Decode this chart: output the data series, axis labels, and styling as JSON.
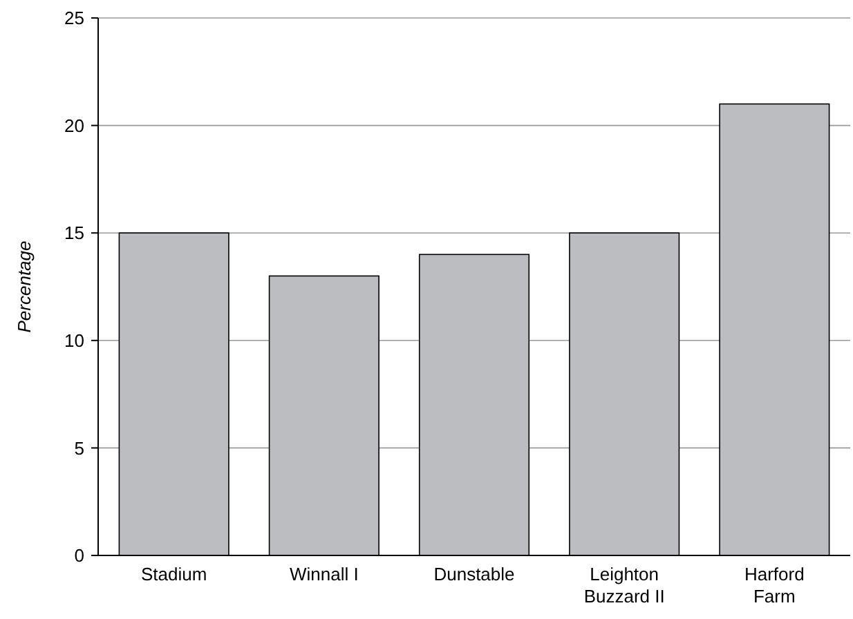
{
  "chart_data": {
    "type": "bar",
    "ylabel": "Percentage",
    "categories": [
      "Stadium",
      "Winnall I",
      "Dunstable",
      "Leighton Buzzard II",
      "Harford Farm"
    ],
    "values": [
      15,
      13,
      14,
      15,
      21
    ],
    "color": "#bcbdc1",
    "ylim": [
      0,
      25
    ],
    "yticks": [
      0,
      5,
      10,
      15,
      20,
      25
    ],
    "grid": "y"
  }
}
